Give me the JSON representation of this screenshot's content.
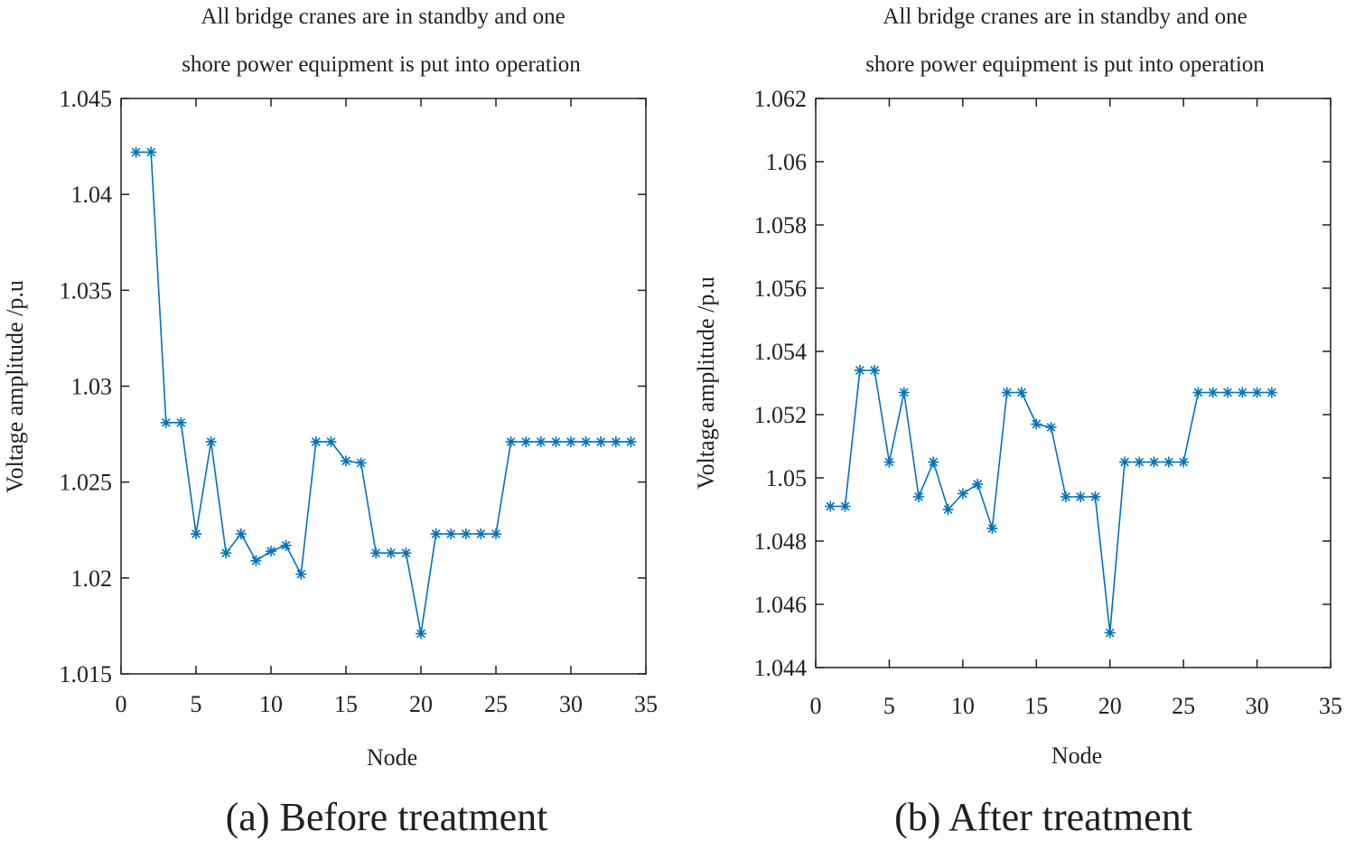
{
  "chart_data": [
    {
      "type": "line",
      "title_lines": [
        "All bridge cranes are in standby and one",
        "shore power equipment is put into operation"
      ],
      "xlabel": "Node",
      "ylabel": "Voltage amplitude /p.u",
      "caption": "(a) Before treatment",
      "xlim": [
        0,
        35
      ],
      "ylim": [
        1.015,
        1.045
      ],
      "xticks": [
        0,
        5,
        10,
        15,
        20,
        25,
        30,
        35
      ],
      "xtick_labels": [
        "0",
        "5",
        "10",
        "15",
        "20",
        "25",
        "30",
        "35"
      ],
      "yticks": [
        1.015,
        1.02,
        1.025,
        1.03,
        1.035,
        1.04,
        1.045
      ],
      "ytick_labels": [
        "1.015",
        "1.02",
        "1.025",
        "1.03",
        "1.035",
        "1.04",
        "1.045"
      ],
      "grid": false,
      "marker": "asterisk",
      "color": "#0072bd",
      "series": [
        {
          "x": [
            1,
            2,
            3,
            4,
            5,
            6,
            7,
            8,
            9,
            10,
            11,
            12,
            13,
            14,
            15,
            16,
            17,
            18,
            19,
            20,
            21,
            22,
            23,
            24,
            25,
            26,
            27,
            28,
            29,
            30,
            31,
            32,
            33,
            34
          ],
          "values": [
            1.0422,
            1.0422,
            1.0281,
            1.0281,
            1.0223,
            1.0271,
            1.0213,
            1.0223,
            1.0209,
            1.0214,
            1.0217,
            1.0202,
            1.0271,
            1.0271,
            1.0261,
            1.026,
            1.0213,
            1.0213,
            1.0213,
            1.0171,
            1.0223,
            1.0223,
            1.0223,
            1.0223,
            1.0223,
            1.0271,
            1.0271,
            1.0271,
            1.0271,
            1.0271,
            1.0271,
            1.0271,
            1.0271,
            1.0271
          ]
        }
      ]
    },
    {
      "type": "line",
      "title_lines": [
        "All bridge cranes are in standby and one",
        "shore power equipment is put into operation"
      ],
      "xlabel": "Node",
      "ylabel": "Voltage amplitude /p.u",
      "caption": "(b) After treatment",
      "xlim": [
        0,
        35
      ],
      "ylim": [
        1.044,
        1.062
      ],
      "xticks": [
        0,
        5,
        10,
        15,
        20,
        25,
        30,
        35
      ],
      "xtick_labels": [
        "0",
        "5",
        "10",
        "15",
        "20",
        "25",
        "30",
        "35"
      ],
      "yticks": [
        1.044,
        1.046,
        1.048,
        1.05,
        1.052,
        1.054,
        1.056,
        1.058,
        1.06,
        1.062
      ],
      "ytick_labels": [
        "1.044",
        "1.046",
        "1.048",
        "1.05",
        "1.052",
        "1.054",
        "1.056",
        "1.058",
        "1.06",
        "1.062"
      ],
      "grid": false,
      "marker": "asterisk",
      "color": "#0072bd",
      "series": [
        {
          "x": [
            1,
            2,
            3,
            4,
            5,
            6,
            7,
            8,
            9,
            10,
            11,
            12,
            13,
            14,
            15,
            16,
            17,
            18,
            19,
            20,
            21,
            22,
            23,
            24,
            25,
            26,
            27,
            28,
            29,
            30,
            31
          ],
          "values": [
            1.0491,
            1.0491,
            1.0534,
            1.0534,
            1.0505,
            1.0527,
            1.0494,
            1.0505,
            1.049,
            1.0495,
            1.0498,
            1.0484,
            1.0527,
            1.0527,
            1.0517,
            1.0516,
            1.0494,
            1.0494,
            1.0494,
            1.0451,
            1.0505,
            1.0505,
            1.0505,
            1.0505,
            1.0505,
            1.0527,
            1.0527,
            1.0527,
            1.0527,
            1.0527,
            1.0527
          ]
        }
      ]
    }
  ]
}
